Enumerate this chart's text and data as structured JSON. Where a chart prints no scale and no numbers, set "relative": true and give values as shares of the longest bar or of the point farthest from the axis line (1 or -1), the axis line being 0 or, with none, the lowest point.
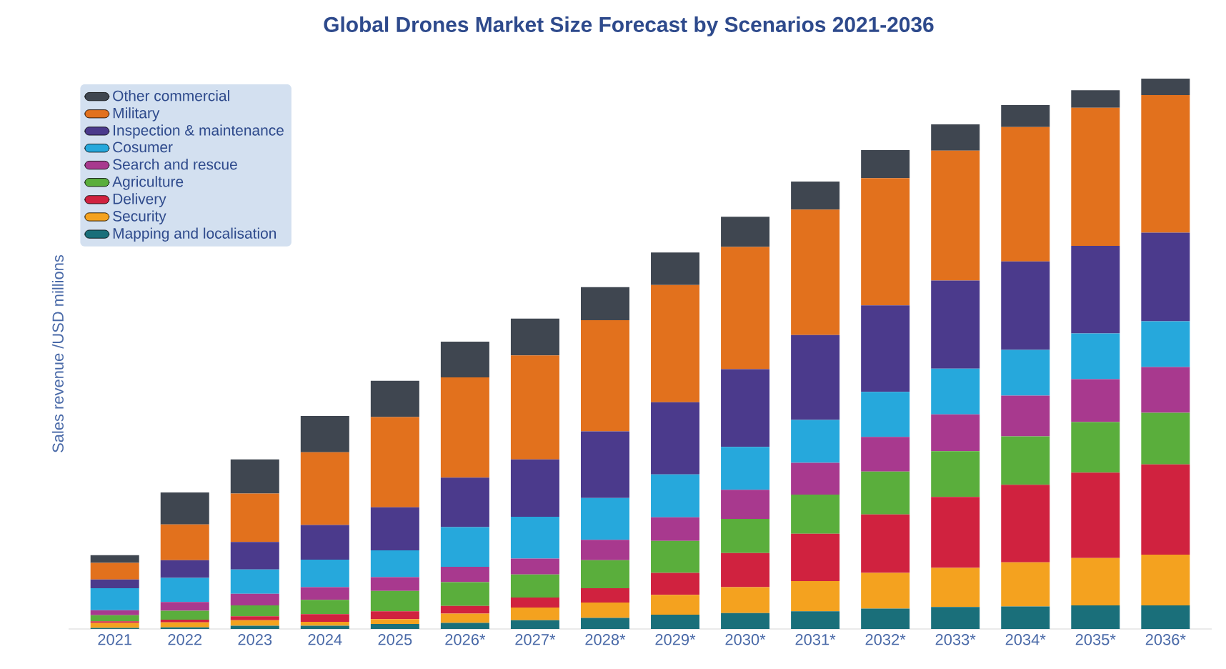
{
  "chart_data": {
    "type": "bar",
    "title": "Global Drones Market Size Forecast by Scenarios 2021-2036",
    "ylabel": "Sales revenue /USD millions",
    "categories": [
      "2021",
      "2022",
      "2023",
      "2024",
      "2025",
      "2026*",
      "2027*",
      "2028*",
      "2029*",
      "2030*",
      "2031*",
      "2032*",
      "2033*",
      "2034*",
      "2035*",
      "2036*"
    ],
    "stacked": true,
    "relative": true,
    "legend": "top left",
    "series": [
      {
        "name": "Mapping and localisation",
        "color": "#1a6f7a",
        "values": [
          0.002,
          0.003,
          0.006,
          0.006,
          0.009,
          0.011,
          0.016,
          0.02,
          0.026,
          0.029,
          0.032,
          0.037,
          0.04,
          0.041,
          0.043,
          0.043
        ]
      },
      {
        "name": "Security",
        "color": "#f4a21f",
        "values": [
          0.009,
          0.009,
          0.01,
          0.007,
          0.009,
          0.017,
          0.023,
          0.028,
          0.036,
          0.047,
          0.055,
          0.065,
          0.071,
          0.08,
          0.086,
          0.092
        ]
      },
      {
        "name": "Delivery",
        "color": "#d0223f",
        "values": [
          0.003,
          0.005,
          0.007,
          0.014,
          0.014,
          0.014,
          0.018,
          0.026,
          0.04,
          0.062,
          0.086,
          0.106,
          0.129,
          0.141,
          0.155,
          0.164
        ]
      },
      {
        "name": "Agriculture",
        "color": "#5aae3c",
        "values": [
          0.011,
          0.016,
          0.02,
          0.026,
          0.037,
          0.043,
          0.042,
          0.051,
          0.058,
          0.062,
          0.071,
          0.078,
          0.083,
          0.088,
          0.092,
          0.094
        ]
      },
      {
        "name": "Search and rescue",
        "color": "#a8398e",
        "values": [
          0.009,
          0.016,
          0.021,
          0.023,
          0.025,
          0.028,
          0.029,
          0.037,
          0.043,
          0.053,
          0.058,
          0.063,
          0.067,
          0.074,
          0.078,
          0.083
        ]
      },
      {
        "name": "Cosumer",
        "color": "#26a8dc",
        "values": [
          0.04,
          0.044,
          0.044,
          0.05,
          0.049,
          0.072,
          0.076,
          0.076,
          0.078,
          0.078,
          0.078,
          0.082,
          0.083,
          0.083,
          0.083,
          0.083
        ]
      },
      {
        "name": "Inspection & maintenance",
        "color": "#4b3a8c",
        "values": [
          0.016,
          0.032,
          0.05,
          0.063,
          0.078,
          0.09,
          0.104,
          0.121,
          0.131,
          0.141,
          0.154,
          0.157,
          0.16,
          0.161,
          0.159,
          0.161
        ]
      },
      {
        "name": "Military",
        "color": "#e2711d",
        "values": [
          0.03,
          0.065,
          0.088,
          0.132,
          0.164,
          0.182,
          0.189,
          0.202,
          0.213,
          0.222,
          0.228,
          0.231,
          0.236,
          0.244,
          0.251,
          0.25
        ]
      },
      {
        "name": "Other commercial",
        "color": "#3f4650",
        "values": [
          0.014,
          0.058,
          0.062,
          0.066,
          0.066,
          0.065,
          0.067,
          0.06,
          0.059,
          0.055,
          0.051,
          0.051,
          0.048,
          0.04,
          0.032,
          0.03
        ]
      }
    ]
  }
}
